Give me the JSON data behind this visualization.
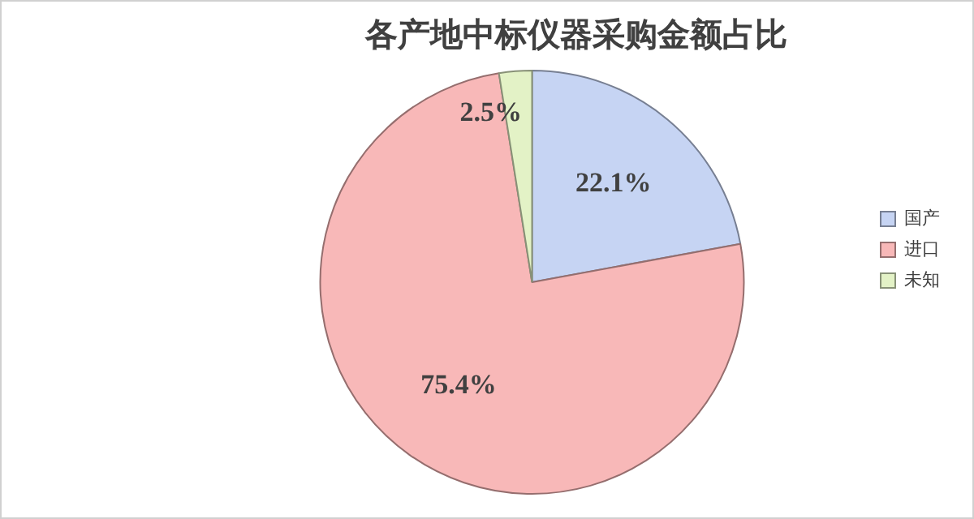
{
  "chart_data": {
    "type": "pie",
    "title": "各产地中标仪器采购金额占比",
    "categories": [
      "国产",
      "进口",
      "未知"
    ],
    "values": [
      22.1,
      75.4,
      2.5
    ],
    "colors": [
      "#c6d4f3",
      "#f8b8b8",
      "#e3f2c6"
    ],
    "value_labels": [
      "22.1%",
      "75.4%",
      "2.5%"
    ],
    "legend": "right"
  }
}
